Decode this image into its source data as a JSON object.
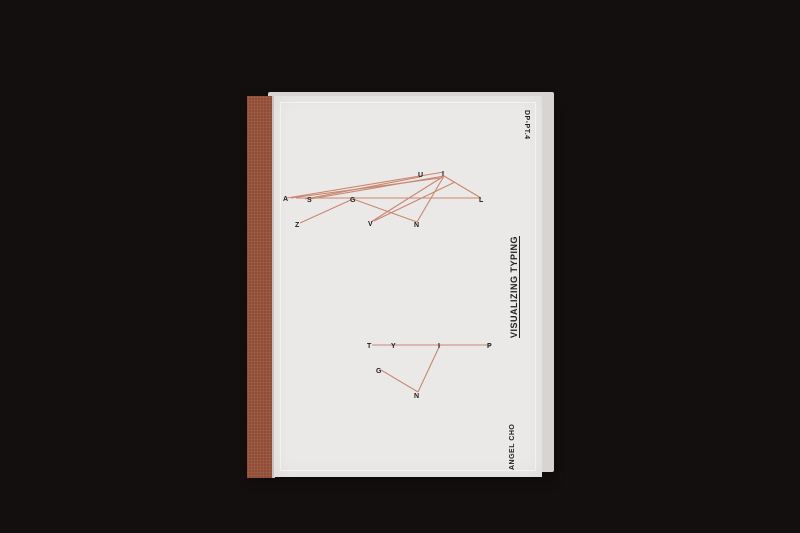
{
  "notebook": {
    "code": "DP-PT.4",
    "title": "VISUALIZING TYPING",
    "author": "ANGEL CHO",
    "thread_color": "#c98670",
    "spine_color": "#8c4b36",
    "background_color": "#140f0f"
  },
  "word_one": {
    "letters": [
      "A",
      "S",
      "G",
      "U",
      "I",
      "L",
      "Z",
      "V",
      "N"
    ]
  },
  "word_two": {
    "letters": [
      "T",
      "Y",
      "I",
      "P",
      "G",
      "N"
    ]
  }
}
